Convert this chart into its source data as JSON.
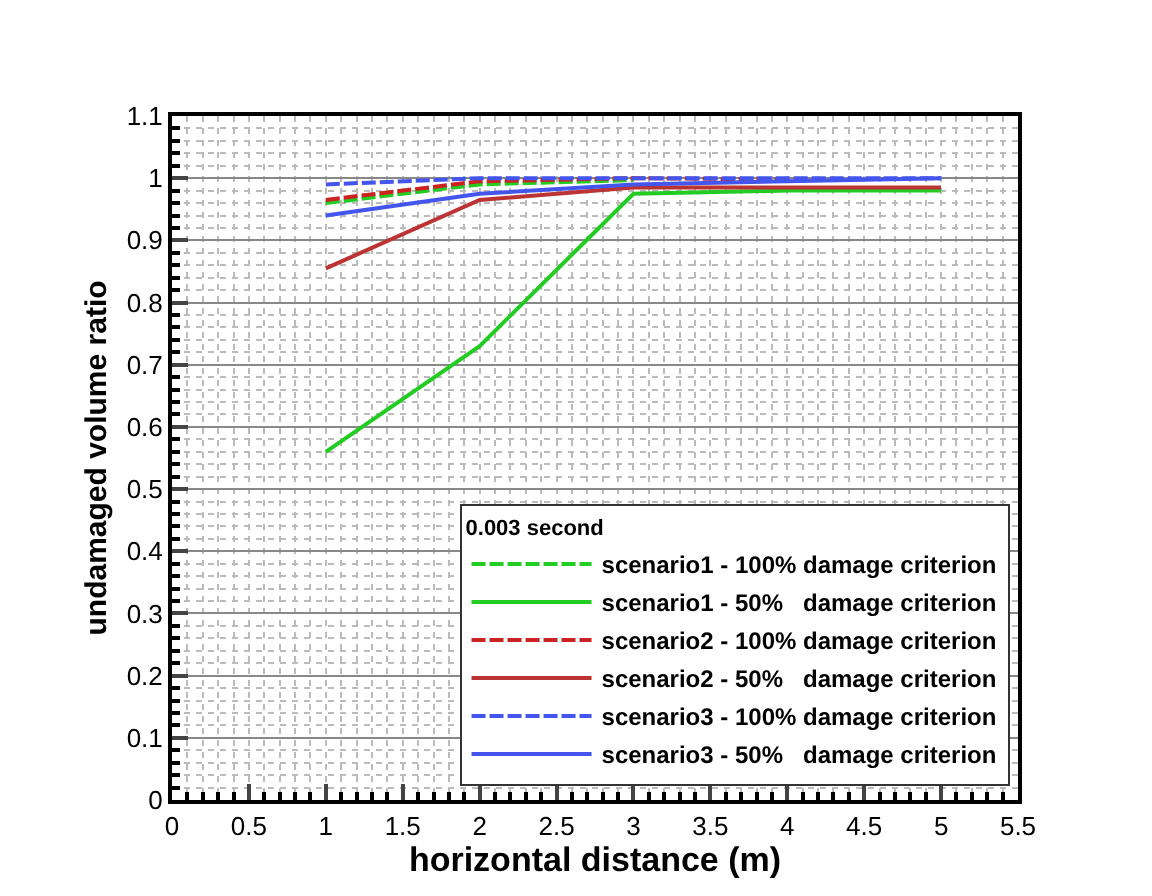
{
  "chart_data": {
    "type": "line",
    "xlabel": "horizontal distance (m)",
    "ylabel": "undamaged volume ratio",
    "legend_title": "0.003 second",
    "x": [
      1,
      2,
      3,
      4,
      5
    ],
    "series": [
      {
        "name": "scenario1 - 100% damage criterion",
        "color": "#22cc22",
        "line_style": "dashed",
        "values": [
          0.96,
          0.99,
          0.997,
          null,
          null
        ]
      },
      {
        "name": "scenario1 - 50%   damage criterion",
        "color": "#22cc22",
        "line_style": "solid",
        "values": [
          0.56,
          0.73,
          0.975,
          0.98,
          0.98
        ]
      },
      {
        "name": "scenario2 - 100% damage criterion",
        "color": "#cc2222",
        "line_style": "dashed",
        "values": [
          0.965,
          0.995,
          1,
          0.998,
          null
        ]
      },
      {
        "name": "scenario2 - 50%   damage criterion",
        "color": "#bb3333",
        "line_style": "solid",
        "values": [
          0.855,
          0.965,
          0.985,
          0.985,
          0.985
        ]
      },
      {
        "name": "scenario3 - 100% damage criterion",
        "color": "#4455ee",
        "line_style": "dashed",
        "values": [
          0.99,
          1,
          1,
          1,
          1
        ]
      },
      {
        "name": "scenario3 - 50%   damage criterion",
        "color": "#4455ee",
        "line_style": "solid",
        "values": [
          0.94,
          0.975,
          0.99,
          0.995,
          1
        ]
      }
    ],
    "xlim": [
      0,
      5.5
    ],
    "xticks": [
      0,
      0.5,
      1,
      1.5,
      2,
      2.5,
      3,
      3.5,
      4,
      4.5,
      5,
      5.5
    ],
    "ylim": [
      0,
      1.1
    ],
    "yticks": [
      0,
      0.1,
      0.2,
      0.3,
      0.4,
      0.5,
      0.6,
      0.7,
      0.8,
      0.9,
      1,
      1.1
    ],
    "grid": true,
    "legend": "bottom right",
    "marker": "none"
  }
}
